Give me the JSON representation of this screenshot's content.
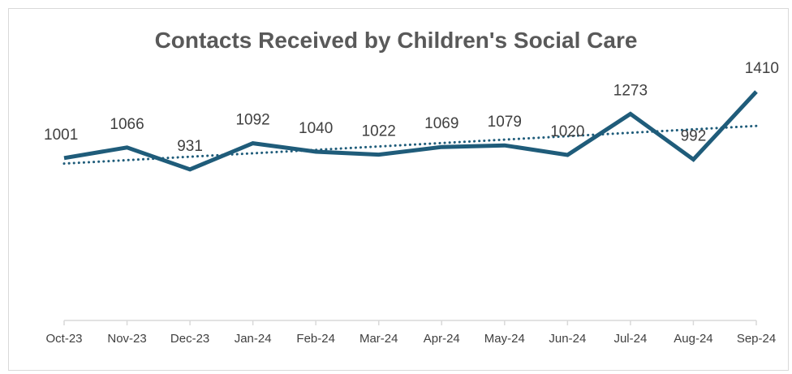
{
  "chart_data": {
    "type": "line",
    "title": "Contacts Received by Children's Social Care",
    "xlabel": "",
    "ylabel": "",
    "categories": [
      "Oct-23",
      "Nov-23",
      "Dec-23",
      "Jan-24",
      "Feb-24",
      "Mar-24",
      "Apr-24",
      "May-24",
      "Jun-24",
      "Jul-24",
      "Aug-24",
      "Sep-24"
    ],
    "series": [
      {
        "values": [
          1001,
          1066,
          931,
          1092,
          1040,
          1022,
          1069,
          1079,
          1020,
          1273,
          992,
          1410
        ]
      }
    ],
    "trendline": {
      "style": "dotted",
      "type": "linear"
    },
    "ylim": [
      0,
      1600
    ],
    "grid": false,
    "legend": "none",
    "colors": {
      "line": "#1f5c7a",
      "trend": "#1f5c7a",
      "axis": "#d9d9d9",
      "text": "#404040",
      "title": "#595959"
    }
  }
}
